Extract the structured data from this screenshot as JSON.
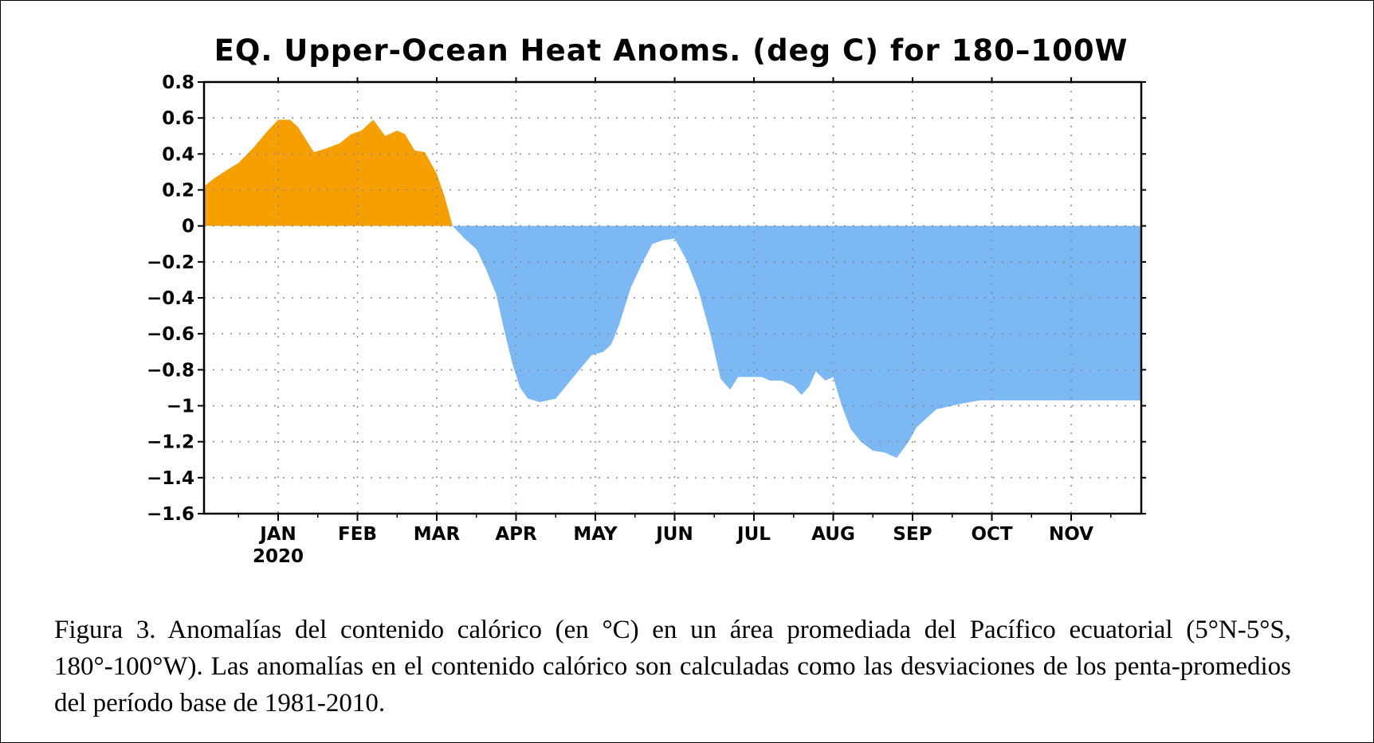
{
  "chart_data": {
    "type": "area",
    "title": "EQ. Upper-Ocean Heat Anoms. (deg C) for 180–100W",
    "y_ticks": [
      "0.8",
      "0.6",
      "0.4",
      "0.2",
      "0",
      "−0.2",
      "−0.4",
      "−0.6",
      "−0.8",
      "−1",
      "−1.2",
      "−1.4",
      "−1.6"
    ],
    "ylim": [
      -1.6,
      0.8
    ],
    "x_ticks": [
      "JAN",
      "FEB",
      "MAR",
      "APR",
      "MAY",
      "JUN",
      "JUL",
      "AUG",
      "SEP",
      "OCT",
      "NOV"
    ],
    "year_label": "2020",
    "positive_color": "#F5A000",
    "negative_color": "#7CB8F4",
    "grid": true,
    "series": [
      {
        "x": [
          -0.97,
          -0.82,
          -0.65,
          -0.5,
          -0.3,
          -0.15,
          0.0,
          0.15,
          0.25,
          0.35,
          0.45,
          0.6,
          0.78,
          0.92,
          1.05,
          1.2,
          1.35,
          1.5,
          1.6,
          1.72,
          1.85,
          2.0,
          2.1,
          2.2,
          2.35,
          2.5,
          2.62,
          2.75,
          2.85,
          2.95,
          3.05,
          3.15,
          3.3,
          3.5,
          3.65,
          3.8,
          3.95,
          4.1,
          4.2,
          4.3,
          4.45,
          4.6,
          4.72,
          4.85,
          5.0,
          5.15,
          5.3,
          5.45,
          5.58,
          5.7,
          5.8,
          5.9,
          6.0,
          6.1,
          6.2,
          6.35,
          6.5,
          6.6,
          6.7,
          6.78,
          6.9,
          7.0,
          7.1,
          7.22,
          7.35,
          7.5,
          7.65,
          7.8,
          7.95,
          8.05,
          8.2,
          8.3,
          8.4,
          8.5,
          8.6,
          8.72,
          8.85,
          9.0,
          9.15,
          9.3,
          9.45,
          9.6,
          9.8,
          9.93,
          10.0,
          10.1,
          10.2,
          10.35,
          10.5,
          10.65,
          10.8,
          10.9
        ],
        "y": [
          0.22,
          0.26,
          0.31,
          0.35,
          0.44,
          0.52,
          0.59,
          0.59,
          0.55,
          0.48,
          0.41,
          0.43,
          0.46,
          0.51,
          0.53,
          0.59,
          0.5,
          0.53,
          0.51,
          0.42,
          0.41,
          0.29,
          0.16,
          0.0,
          -0.07,
          -0.13,
          -0.24,
          -0.38,
          -0.58,
          -0.76,
          -0.9,
          -0.96,
          -0.98,
          -0.96,
          -0.88,
          -0.8,
          -0.72,
          -0.7,
          -0.66,
          -0.55,
          -0.34,
          -0.2,
          -0.1,
          -0.08,
          -0.07,
          -0.19,
          -0.36,
          -0.6,
          -0.85,
          -0.91,
          -0.84,
          -0.84,
          -0.84,
          -0.84,
          -0.86,
          -0.86,
          -0.89,
          -0.94,
          -0.89,
          -0.81,
          -0.86,
          -0.84,
          -0.99,
          -1.13,
          -1.2,
          -1.25,
          -1.26,
          -1.29,
          -1.2,
          -1.12,
          -1.06,
          -1.02,
          -1.01,
          -1.0,
          -0.99,
          -0.98,
          -0.97,
          -0.97,
          -0.97,
          -0.97,
          -0.97,
          -0.97,
          -0.97,
          -0.97,
          -0.97,
          -0.97,
          -0.97,
          -0.97,
          -0.97,
          -0.97,
          -0.97,
          -0.97
        ]
      }
    ]
  },
  "caption": {
    "line1": "Figura 3. Anomalías del contenido calórico (en °C) en un área promediada del Pacífico",
    "line2": "ecuatorial (5°N-5°S, 180°-100°W). Las anomalías en el contenido calórico son calculadas como",
    "line3": "las desviaciones de los penta-promedios del período base de 1981-2010."
  }
}
